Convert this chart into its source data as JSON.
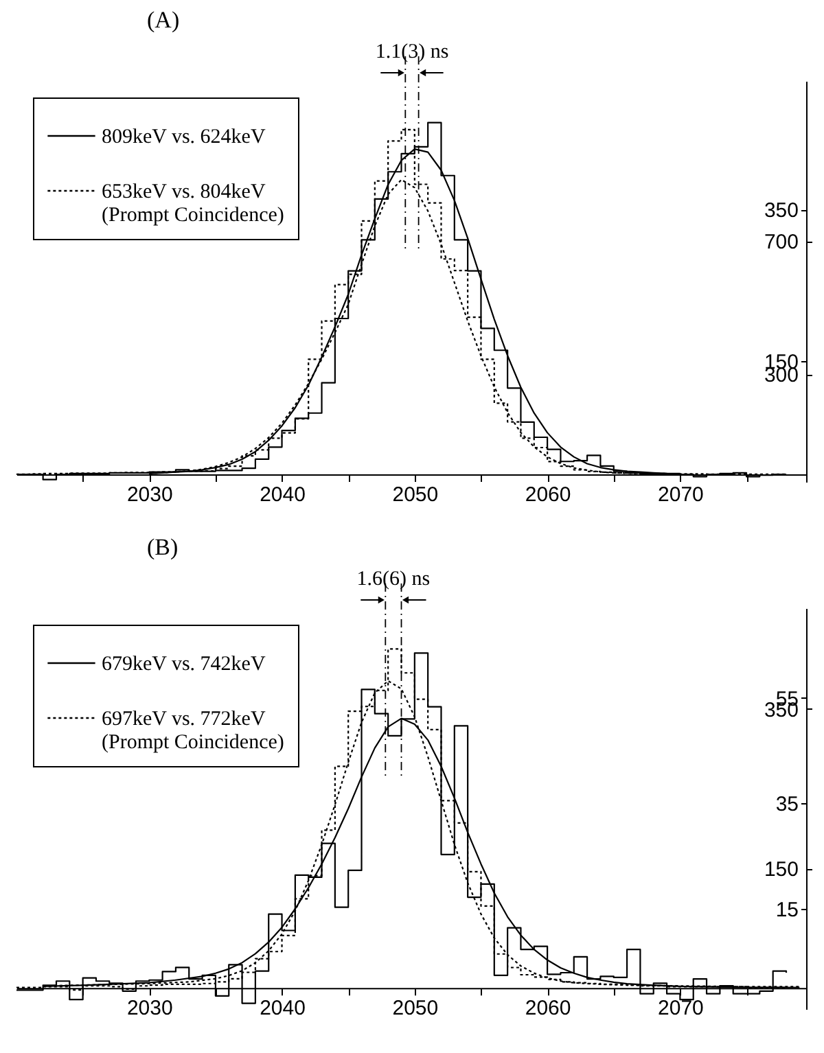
{
  "chart_data": [
    {
      "type": "step",
      "title": "(A)",
      "annotations": [
        "1.1(3) ns"
      ],
      "legend": "top left",
      "grid": false,
      "xlim": [
        2020,
        2079.5
      ],
      "xticks": [
        {
          "value": 2025,
          "label": null
        },
        2030,
        {
          "value": 2035,
          "label": null
        },
        2040,
        {
          "value": 2045,
          "label": null
        },
        2050,
        {
          "value": 2055,
          "label": null
        },
        2060,
        {
          "value": 2065,
          "label": null
        },
        2070,
        {
          "value": 2075,
          "label": null
        }
      ],
      "ylim": [
        -10,
        520
      ],
      "yticks": [
        150,
        350
      ],
      "y2lim": [
        -23,
        1180
      ],
      "y2ticks": [
        300,
        700
      ],
      "ref_lines": [
        {
          "axis": "x",
          "value": 2049.3,
          "line_style": "dashed",
          "color": "#000000"
        },
        {
          "axis": "x",
          "value": 2050.3,
          "line_style": "dashed",
          "color": "#000000"
        }
      ],
      "series": [
        {
          "type": "step",
          "name": "809keV vs. 624keV",
          "color": "#000000",
          "line_style": "solid",
          "axis": "y",
          "x": [
            2020,
            2021,
            2022,
            2023,
            2024,
            2025,
            2026,
            2027,
            2028,
            2029,
            2030,
            2031,
            2032,
            2033,
            2034,
            2035,
            2036,
            2037,
            2038,
            2039,
            2040,
            2041,
            2042,
            2043,
            2044,
            2045,
            2046,
            2047,
            2048,
            2049,
            2050,
            2051,
            2052,
            2053,
            2054,
            2055,
            2056,
            2057,
            2058,
            2059,
            2060,
            2061,
            2062,
            2063,
            2064,
            2065,
            2066,
            2067,
            2068,
            2069,
            2070,
            2071,
            2072,
            2073,
            2074,
            2075,
            2076,
            2077,
            2078
          ],
          "values": [
            0,
            0,
            -7,
            0,
            1,
            1,
            1,
            2,
            2,
            2,
            3,
            3,
            6,
            4,
            4,
            5,
            5,
            8,
            20,
            36,
            58,
            74,
            81,
            121,
            206,
            269,
            310,
            364,
            400,
            424,
            433,
            465,
            395,
            310,
            269,
            193,
            164,
            114,
            69,
            49,
            33,
            17,
            18,
            25,
            11,
            4,
            2,
            1,
            1,
            0,
            0,
            -3,
            0,
            1,
            2,
            -3,
            -1,
            0,
            0
          ]
        },
        {
          "type": "step",
          "name": "653keV vs. 804keV\n(Prompt Coincidence)",
          "color": "#000000",
          "line_style": "dotted",
          "axis": "y2",
          "x": [
            2020,
            2021,
            2022,
            2023,
            2024,
            2025,
            2026,
            2027,
            2028,
            2029,
            2030,
            2031,
            2032,
            2033,
            2034,
            2035,
            2036,
            2037,
            2038,
            2039,
            2040,
            2041,
            2042,
            2043,
            2044,
            2045,
            2046,
            2047,
            2048,
            2049,
            2050,
            2051,
            2052,
            2053,
            2054,
            2055,
            2056,
            2057,
            2058,
            2059,
            2060,
            2061,
            2062,
            2063,
            2064,
            2065,
            2066,
            2067,
            2068,
            2069,
            2070,
            2071,
            2072,
            2073,
            2074,
            2075,
            2076,
            2077,
            2078
          ],
          "values": [
            0,
            1,
            2,
            2,
            3,
            3,
            3,
            4,
            5,
            5,
            6,
            7,
            8,
            9,
            10,
            17,
            24,
            55,
            73,
            108,
            124,
            166,
            345,
            460,
            569,
            600,
            760,
            880,
            1000,
            1034,
            870,
            814,
            646,
            611,
            471,
            345,
            213,
            157,
            108,
            80,
            38,
            24,
            13,
            8,
            6,
            4,
            3,
            2,
            2,
            1,
            1,
            1,
            0,
            1,
            0,
            0,
            0,
            0,
            0
          ]
        },
        {
          "type": "line",
          "color": "#000000",
          "line_style": "solid",
          "axis": "y",
          "x": [
            2030,
            2031,
            2032,
            2033,
            2034,
            2035,
            2036,
            2037,
            2038,
            2039,
            2040,
            2041,
            2042,
            2043,
            2044,
            2045,
            2046,
            2047,
            2048,
            2049,
            2050,
            2051,
            2052,
            2053,
            2054,
            2055,
            2056,
            2057,
            2058,
            2059,
            2060,
            2061,
            2062,
            2063,
            2064,
            2065,
            2066,
            2067,
            2068,
            2069,
            2070
          ],
          "values": [
            1,
            2,
            3,
            4,
            6,
            9,
            13,
            20,
            30,
            45,
            64,
            88,
            118,
            155,
            195,
            238,
            290,
            338,
            383,
            415,
            430,
            426,
            402,
            362,
            312,
            258,
            205,
            157,
            115,
            81,
            55,
            36,
            23,
            14,
            9,
            6,
            4,
            3,
            2,
            1,
            1
          ]
        },
        {
          "type": "line",
          "color": "#000000",
          "line_style": "dotted",
          "axis": "y2",
          "x": [
            2030,
            2031,
            2032,
            2033,
            2034,
            2035,
            2036,
            2037,
            2038,
            2039,
            2040,
            2041,
            2042,
            2043,
            2044,
            2045,
            2046,
            2047,
            2048,
            2049,
            2050,
            2051,
            2052,
            2053,
            2054,
            2055,
            2056,
            2057,
            2058,
            2059,
            2060,
            2061,
            2062,
            2063,
            2064,
            2065,
            2066,
            2067,
            2068,
            2069,
            2070
          ],
          "values": [
            3,
            4,
            7,
            10,
            15,
            23,
            35,
            52,
            77,
            110,
            153,
            208,
            272,
            345,
            425,
            510,
            630,
            745,
            840,
            884,
            860,
            790,
            690,
            575,
            460,
            355,
            262,
            185,
            125,
            82,
            52,
            32,
            19,
            12,
            7,
            4,
            3,
            2,
            1,
            1,
            1
          ]
        }
      ]
    },
    {
      "type": "step",
      "title": "(B)",
      "annotations": [
        "1.6(6) ns"
      ],
      "legend": "top left",
      "grid": false,
      "xlim": [
        2020,
        2079.5
      ],
      "xticks": [
        {
          "value": 2025,
          "label": null
        },
        2030,
        {
          "value": 2035,
          "label": null
        },
        2040,
        {
          "value": 2045,
          "label": null
        },
        2050,
        {
          "value": 2055,
          "label": null
        },
        2060,
        {
          "value": 2065,
          "label": null
        },
        2070,
        {
          "value": 2075,
          "label": null
        }
      ],
      "ylim": [
        -4,
        72
      ],
      "yticks": [
        15,
        35,
        55
      ],
      "y2lim": [
        -26,
        476
      ],
      "y2ticks": [
        150,
        350
      ],
      "ref_lines": [
        {
          "axis": "x",
          "value": 2047.8,
          "line_style": "dashed",
          "color": "#000000"
        },
        {
          "axis": "x",
          "value": 2049.0,
          "line_style": "dashed",
          "color": "#000000"
        }
      ],
      "series": [
        {
          "type": "step",
          "name": "679keV vs. 742keV",
          "color": "#000000",
          "line_style": "solid",
          "axis": "y",
          "x": [
            2020,
            2021,
            2022,
            2023,
            2024,
            2025,
            2026,
            2027,
            2028,
            2029,
            2030,
            2031,
            2032,
            2033,
            2034,
            2035,
            2036,
            2037,
            2038,
            2039,
            2040,
            2041,
            2042,
            2043,
            2044,
            2045,
            2046,
            2047,
            2048,
            2049,
            2050,
            2051,
            2052,
            2053,
            2054,
            2055,
            2056,
            2057,
            2058,
            2059,
            2060,
            2061,
            2062,
            2063,
            2064,
            2065,
            2066,
            2067,
            2068,
            2069,
            2070,
            2071,
            2072,
            2073,
            2074,
            2075,
            2076,
            2077,
            2078
          ],
          "values": [
            -0.4,
            -0.4,
            0.5,
            1.3,
            -2.2,
            1.9,
            1.3,
            0.9,
            -0.6,
            1.3,
            1.5,
            3.1,
            3.9,
            1.7,
            2.4,
            -1.5,
            4.4,
            -2.9,
            3.2,
            14,
            10.9,
            21.4,
            21,
            27.4,
            15.3,
            22.3,
            56.6,
            52,
            47.8,
            51,
            63.5,
            53.3,
            25.3,
            49.7,
            17.2,
            19.7,
            2.4,
            11.4,
            7.3,
            7.9,
            2.6,
            2.9,
            5.9,
            1.7,
            2.2,
            2,
            7.3,
            -1.1,
            0.9,
            -1.1,
            -2.2,
            1.7,
            -1.1,
            0.4,
            -1.1,
            -1.1,
            -0.6,
            3.2,
            2.9
          ]
        },
        {
          "type": "step",
          "name": "697keV vs. 772keV\n(Prompt Coincidence)",
          "color": "#000000",
          "line_style": "dotted",
          "axis": "y2",
          "x": [
            2020,
            2021,
            2022,
            2023,
            2024,
            2025,
            2026,
            2027,
            2028,
            2029,
            2030,
            2031,
            2032,
            2033,
            2034,
            2035,
            2036,
            2037,
            2038,
            2039,
            2040,
            2041,
            2042,
            2043,
            2044,
            2045,
            2046,
            2047,
            2048,
            2049,
            2050,
            2051,
            2052,
            2053,
            2054,
            2055,
            2056,
            2057,
            2058,
            2059,
            2060,
            2061,
            2062,
            2063,
            2064,
            2065,
            2066,
            2067,
            2068,
            2069,
            2070,
            2071,
            2072,
            2073,
            2074,
            2075,
            2076,
            2077,
            2078
          ],
          "values": [
            1,
            1,
            2,
            2,
            -2,
            3,
            3,
            2,
            -1,
            3,
            4,
            5,
            5,
            5,
            6,
            8,
            12,
            20,
            37,
            46,
            66,
            112,
            141,
            198,
            278,
            347,
            353,
            373,
            425,
            395,
            362,
            324,
            235,
            207,
            146,
            103,
            43,
            26,
            17,
            14,
            11,
            8,
            7,
            6,
            5,
            5,
            4,
            3,
            3,
            2,
            2,
            2,
            2,
            2,
            2,
            1,
            1,
            1,
            1
          ]
        },
        {
          "type": "line",
          "color": "#000000",
          "line_style": "solid",
          "axis": "y",
          "x": [
            2022,
            2025,
            2030,
            2032,
            2034,
            2035,
            2036,
            2037,
            2038,
            2039,
            2040,
            2041,
            2042,
            2043,
            2044,
            2045,
            2046,
            2047,
            2048,
            2049,
            2050,
            2051,
            2052,
            2053,
            2054,
            2055,
            2056,
            2057,
            2058,
            2059,
            2060,
            2061,
            2062,
            2063,
            2064,
            2065,
            2066,
            2068,
            2070,
            2075,
            2079
          ],
          "values": [
            0.3,
            0.5,
            1,
            1.5,
            2.2,
            2.8,
            3.6,
            4.8,
            6.5,
            8.7,
            11.5,
            15,
            19,
            23.5,
            28.5,
            34,
            40,
            45.5,
            49.5,
            51.1,
            50,
            47,
            42,
            36,
            29.5,
            23.5,
            18,
            13.5,
            10,
            7.3,
            5.3,
            3.8,
            2.8,
            2,
            1.5,
            1.1,
            0.8,
            0.5,
            0.3,
            0.1,
            0.1
          ]
        },
        {
          "type": "line",
          "color": "#000000",
          "line_style": "dotted",
          "axis": "y2",
          "x": [
            2022,
            2025,
            2030,
            2033,
            2035,
            2036,
            2037,
            2038,
            2039,
            2040,
            2041,
            2042,
            2043,
            2044,
            2045,
            2046,
            2047,
            2048,
            2049,
            2050,
            2051,
            2052,
            2053,
            2054,
            2055,
            2056,
            2057,
            2058,
            2059,
            2060,
            2061,
            2062,
            2064,
            2066,
            2070,
            2075,
            2079
          ],
          "values": [
            3,
            4,
            6,
            8,
            12,
            16,
            22,
            32,
            47,
            68,
            97,
            135,
            180,
            230,
            283,
            333,
            370,
            385,
            375,
            340,
            290,
            235,
            180,
            132,
            93,
            63,
            42,
            28,
            19,
            13,
            9,
            7,
            5,
            4,
            3,
            2,
            2
          ]
        }
      ]
    }
  ]
}
